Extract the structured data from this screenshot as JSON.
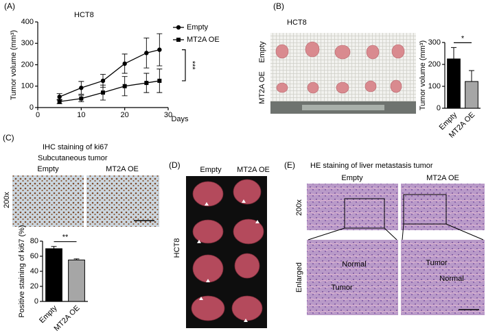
{
  "chart_data": [
    {
      "type": "line",
      "title": "HCT8",
      "xlabel": "Days",
      "ylabel": "Tumor volume (mm³)",
      "x": [
        5,
        10,
        15,
        20,
        25,
        28
      ],
      "xlim": [
        0,
        30
      ],
      "xticks": [
        0,
        10,
        20,
        30
      ],
      "ylim": [
        0,
        400
      ],
      "yticks": [
        0,
        100,
        200,
        300,
        400
      ],
      "series": [
        {
          "name": "Empty",
          "color": "#000000",
          "marker": "circle",
          "values": [
            50,
            92,
            125,
            205,
            255,
            270
          ],
          "errors": [
            15,
            30,
            30,
            45,
            70,
            75
          ]
        },
        {
          "name": "MT2A OE",
          "color": "#000000",
          "marker": "square",
          "values": [
            28,
            42,
            70,
            100,
            115,
            125
          ],
          "errors": [
            10,
            15,
            35,
            45,
            45,
            55
          ]
        }
      ],
      "annotation": "***"
    },
    {
      "type": "bar",
      "ylabel": "Tumor volume (mm³)",
      "categories": [
        "Empty",
        "MT2A OE"
      ],
      "values": [
        225,
        122
      ],
      "errors": [
        52,
        50
      ],
      "colors": [
        "#000000",
        "#a6a6a6"
      ],
      "ylim": [
        0,
        300
      ],
      "yticks": [
        0,
        100,
        200,
        300
      ],
      "annotation": "*"
    },
    {
      "type": "bar",
      "ylabel": "Positive staining of ki67 (%)",
      "categories": [
        "Empty",
        "MT2A OE"
      ],
      "values": [
        70,
        55
      ],
      "errors": [
        3,
        1.5
      ],
      "colors": [
        "#000000",
        "#a6a6a6"
      ],
      "ylim": [
        0,
        80
      ],
      "yticks": [
        0,
        20,
        40,
        60,
        80
      ],
      "annotation": "**"
    }
  ],
  "panels": {
    "a": {
      "label": "(A)"
    },
    "b": {
      "label": "(B)",
      "title": "HCT8",
      "row1": "Empty",
      "row2": "MT2A OE"
    },
    "c": {
      "label": "(C)",
      "title": "IHC staining of ki67",
      "subtitle": "Subcutaneous tumor",
      "col1": "Empty",
      "col2": "MT2A OE",
      "row": "200x"
    },
    "d": {
      "label": "(D)",
      "col1": "Empty",
      "col2": "MT2A OE",
      "row": "HCT8"
    },
    "e": {
      "label": "(E)",
      "title": "HE staining of liver metastasis tumor",
      "col1": "Empty",
      "col2": "MT2A OE",
      "row1": "200x",
      "row2": "Enlarged",
      "left_normal": "Normal",
      "left_tumor": "Tumor",
      "right_tumor": "Tumor",
      "right_normal": "Normal"
    }
  }
}
